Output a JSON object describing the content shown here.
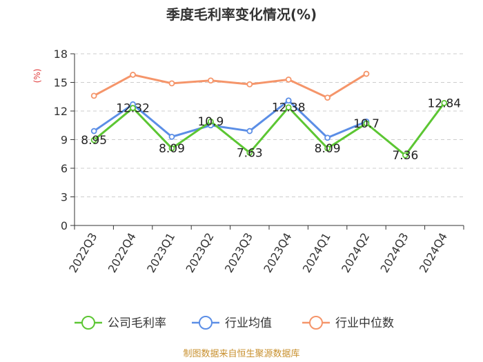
{
  "chart_data": {
    "type": "line",
    "title": "季度毛利率变化情况(%)",
    "ylabel": "(%)",
    "ylim": [
      0,
      18
    ],
    "yticks": [
      0,
      3,
      6,
      9,
      12,
      15,
      18
    ],
    "categories": [
      "2022Q3",
      "2022Q4",
      "2023Q1",
      "2023Q2",
      "2023Q3",
      "2023Q4",
      "2024Q1",
      "2024Q2",
      "2024Q3",
      "2024Q4"
    ],
    "grid": true,
    "legend_position": "bottom",
    "series": [
      {
        "name": "公司毛利率",
        "color": "#5cc633",
        "values": [
          8.95,
          12.32,
          8.09,
          10.9,
          7.63,
          12.38,
          8.09,
          10.7,
          7.36,
          12.84
        ],
        "labels": [
          "8.95",
          "12.32",
          "8.09",
          "10.9",
          "7.63",
          "12.38",
          "8.09",
          "10.7",
          "7.36",
          "12.84"
        ]
      },
      {
        "name": "行业均值",
        "color": "#5b8ee6",
        "values": [
          9.9,
          12.7,
          9.3,
          10.5,
          9.9,
          13.1,
          9.2,
          10.9,
          null,
          null
        ]
      },
      {
        "name": "行业中位数",
        "color": "#f5956a",
        "values": [
          13.6,
          15.8,
          14.9,
          15.2,
          14.8,
          15.3,
          13.4,
          15.9,
          null,
          null
        ]
      }
    ]
  },
  "source": "制图数据来自恒生聚源数据库"
}
